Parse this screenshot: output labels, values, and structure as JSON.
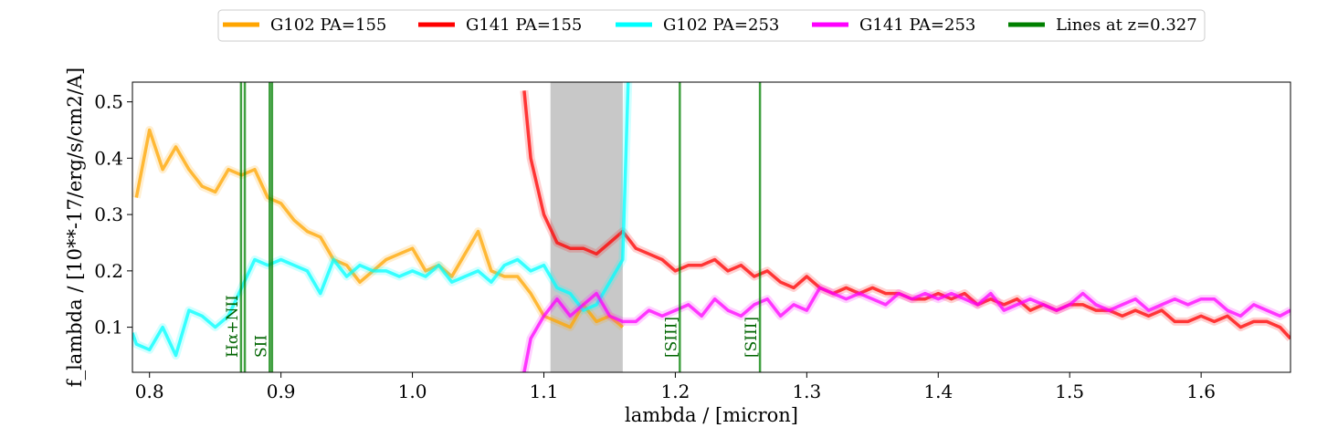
{
  "chart_data": {
    "type": "line",
    "title": "",
    "xlabel": "lambda / [micron]",
    "ylabel": "f_lambda / [10**-17/erg/s/cm2/A]",
    "xlim": [
      0.787,
      1.668
    ],
    "ylim": [
      0.02,
      0.535
    ],
    "xticks": [
      0.8,
      0.9,
      1.0,
      1.1,
      1.2,
      1.3,
      1.4,
      1.5,
      1.6
    ],
    "xtick_labels": [
      "0.8",
      "0.9",
      "1.0",
      "1.1",
      "1.2",
      "1.3",
      "1.4",
      "1.5",
      "1.6"
    ],
    "yticks": [
      0.1,
      0.2,
      0.3,
      0.4,
      0.5
    ],
    "ytick_labels": [
      "0.1",
      "0.2",
      "0.3",
      "0.4",
      "0.5"
    ],
    "grid": false,
    "legend_position": "top-center",
    "shaded_region": {
      "x0": 1.105,
      "x1": 1.16,
      "color": "#c8c8c8"
    },
    "series": [
      {
        "name": "G102 PA=155",
        "color": "#ffa500",
        "x": [
          0.79,
          0.8,
          0.81,
          0.82,
          0.83,
          0.84,
          0.85,
          0.86,
          0.87,
          0.88,
          0.89,
          0.9,
          0.91,
          0.92,
          0.93,
          0.94,
          0.95,
          0.96,
          0.97,
          0.98,
          0.99,
          1.0,
          1.01,
          1.02,
          1.03,
          1.04,
          1.05,
          1.06,
          1.07,
          1.08,
          1.09,
          1.1,
          1.11,
          1.12,
          1.13,
          1.14,
          1.15,
          1.16
        ],
        "y": [
          0.33,
          0.45,
          0.38,
          0.42,
          0.38,
          0.35,
          0.34,
          0.38,
          0.37,
          0.38,
          0.33,
          0.32,
          0.29,
          0.27,
          0.26,
          0.22,
          0.21,
          0.18,
          0.2,
          0.22,
          0.23,
          0.24,
          0.2,
          0.21,
          0.19,
          0.23,
          0.27,
          0.2,
          0.19,
          0.19,
          0.16,
          0.12,
          0.11,
          0.1,
          0.14,
          0.11,
          0.12,
          0.1
        ]
      },
      {
        "name": "G141 PA=155",
        "color": "#ff0000",
        "x": [
          1.085,
          1.09,
          1.1,
          1.11,
          1.12,
          1.13,
          1.14,
          1.15,
          1.16,
          1.17,
          1.18,
          1.19,
          1.2,
          1.21,
          1.22,
          1.23,
          1.24,
          1.25,
          1.26,
          1.27,
          1.28,
          1.29,
          1.3,
          1.31,
          1.32,
          1.33,
          1.34,
          1.35,
          1.36,
          1.37,
          1.38,
          1.39,
          1.4,
          1.41,
          1.42,
          1.43,
          1.44,
          1.45,
          1.46,
          1.47,
          1.48,
          1.49,
          1.5,
          1.51,
          1.52,
          1.53,
          1.54,
          1.55,
          1.56,
          1.57,
          1.58,
          1.59,
          1.6,
          1.61,
          1.62,
          1.63,
          1.64,
          1.65,
          1.66,
          1.668
        ],
        "y": [
          0.52,
          0.4,
          0.3,
          0.25,
          0.24,
          0.24,
          0.23,
          0.25,
          0.27,
          0.24,
          0.23,
          0.22,
          0.2,
          0.21,
          0.21,
          0.22,
          0.2,
          0.21,
          0.19,
          0.2,
          0.18,
          0.17,
          0.19,
          0.17,
          0.16,
          0.17,
          0.16,
          0.17,
          0.16,
          0.16,
          0.15,
          0.15,
          0.16,
          0.15,
          0.16,
          0.14,
          0.15,
          0.14,
          0.15,
          0.13,
          0.14,
          0.13,
          0.14,
          0.14,
          0.13,
          0.13,
          0.12,
          0.13,
          0.12,
          0.13,
          0.11,
          0.11,
          0.12,
          0.11,
          0.12,
          0.1,
          0.11,
          0.11,
          0.1,
          0.08
        ]
      },
      {
        "name": "G102 PA=253",
        "color": "#00ffff",
        "x": [
          0.787,
          0.79,
          0.8,
          0.81,
          0.82,
          0.83,
          0.84,
          0.85,
          0.86,
          0.87,
          0.88,
          0.89,
          0.9,
          0.91,
          0.92,
          0.93,
          0.94,
          0.95,
          0.96,
          0.97,
          0.98,
          0.99,
          1.0,
          1.01,
          1.02,
          1.03,
          1.04,
          1.05,
          1.06,
          1.07,
          1.08,
          1.09,
          1.1,
          1.11,
          1.12,
          1.13,
          1.14,
          1.15,
          1.16,
          1.165
        ],
        "y": [
          0.09,
          0.07,
          0.06,
          0.1,
          0.05,
          0.13,
          0.12,
          0.1,
          0.12,
          0.17,
          0.22,
          0.21,
          0.22,
          0.21,
          0.2,
          0.16,
          0.22,
          0.19,
          0.21,
          0.2,
          0.2,
          0.19,
          0.2,
          0.19,
          0.21,
          0.18,
          0.19,
          0.2,
          0.18,
          0.21,
          0.22,
          0.2,
          0.21,
          0.17,
          0.16,
          0.13,
          0.14,
          0.18,
          0.22,
          0.6
        ]
      },
      {
        "name": "G141 PA=253",
        "color": "#ff00ff",
        "x": [
          1.085,
          1.09,
          1.1,
          1.11,
          1.12,
          1.13,
          1.14,
          1.15,
          1.16,
          1.17,
          1.18,
          1.19,
          1.2,
          1.21,
          1.22,
          1.23,
          1.24,
          1.25,
          1.26,
          1.27,
          1.28,
          1.29,
          1.3,
          1.31,
          1.32,
          1.33,
          1.34,
          1.35,
          1.36,
          1.37,
          1.38,
          1.39,
          1.4,
          1.41,
          1.42,
          1.43,
          1.44,
          1.45,
          1.46,
          1.47,
          1.48,
          1.49,
          1.5,
          1.51,
          1.52,
          1.53,
          1.54,
          1.55,
          1.56,
          1.57,
          1.58,
          1.59,
          1.6,
          1.61,
          1.62,
          1.63,
          1.64,
          1.65,
          1.66,
          1.668
        ],
        "y": [
          0.02,
          0.08,
          0.12,
          0.15,
          0.12,
          0.14,
          0.16,
          0.12,
          0.11,
          0.11,
          0.13,
          0.12,
          0.13,
          0.14,
          0.12,
          0.15,
          0.13,
          0.12,
          0.14,
          0.15,
          0.12,
          0.14,
          0.13,
          0.17,
          0.16,
          0.15,
          0.16,
          0.15,
          0.14,
          0.16,
          0.15,
          0.16,
          0.15,
          0.16,
          0.15,
          0.14,
          0.16,
          0.13,
          0.14,
          0.15,
          0.14,
          0.13,
          0.14,
          0.16,
          0.14,
          0.13,
          0.14,
          0.15,
          0.13,
          0.14,
          0.15,
          0.14,
          0.15,
          0.15,
          0.13,
          0.12,
          0.14,
          0.13,
          0.12,
          0.13
        ]
      }
    ],
    "lines_legend": {
      "name": "Lines at z=0.327",
      "color": "#008000"
    },
    "emission_lines": [
      {
        "x": 0.8696,
        "label": "Hα+NII"
      },
      {
        "x": 0.8725,
        "label": ""
      },
      {
        "x": 0.8914,
        "label": "SII"
      },
      {
        "x": 0.8932,
        "label": ""
      },
      {
        "x": 1.2034,
        "label": "[SIII]"
      },
      {
        "x": 1.2644,
        "label": "[SIII]"
      }
    ]
  }
}
